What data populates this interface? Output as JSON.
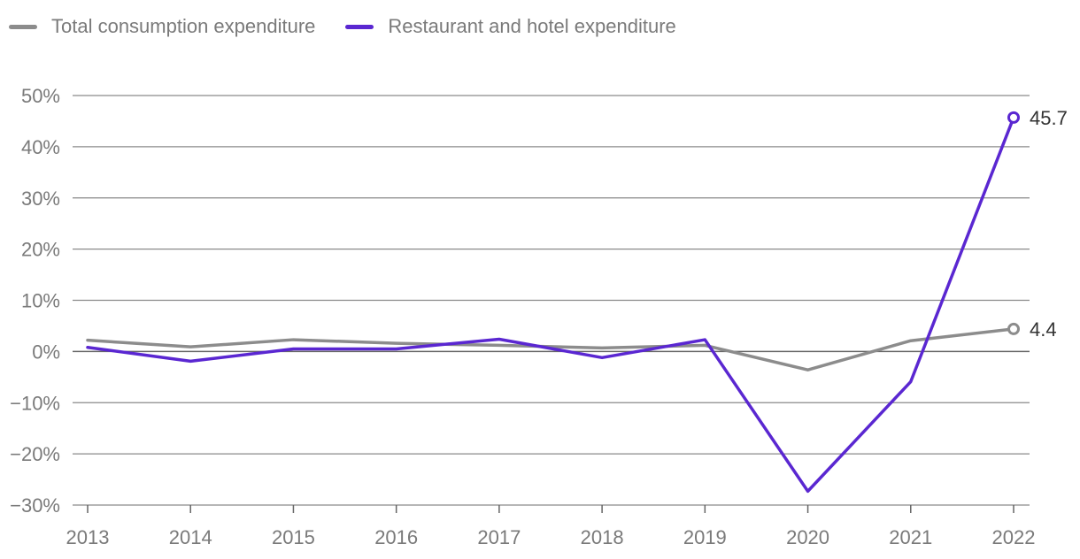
{
  "chart_data": {
    "type": "line",
    "categories": [
      "2013",
      "2014",
      "2015",
      "2016",
      "2017",
      "2018",
      "2019",
      "2020",
      "2021",
      "2022"
    ],
    "series": [
      {
        "name": "Total consumption expenditure",
        "color": "#8c8c8c",
        "values": [
          2.2,
          0.9,
          2.3,
          1.6,
          1.2,
          0.7,
          1.2,
          -3.6,
          2.1,
          4.4
        ],
        "end_label": "4.4"
      },
      {
        "name": "Restaurant and hotel expenditure",
        "color": "#5a27d1",
        "values": [
          0.8,
          -1.9,
          0.5,
          0.5,
          2.4,
          -1.2,
          2.3,
          -27.3,
          -5.9,
          45.7
        ],
        "end_label": "45.7"
      }
    ],
    "y_ticks": [
      {
        "value": 50,
        "label": "50%"
      },
      {
        "value": 40,
        "label": "40%"
      },
      {
        "value": 30,
        "label": "30%"
      },
      {
        "value": 20,
        "label": "20%"
      },
      {
        "value": 10,
        "label": "10%"
      },
      {
        "value": 0,
        "label": "0%"
      },
      {
        "value": -10,
        "label": "−10%"
      },
      {
        "value": -20,
        "label": "−20%"
      },
      {
        "value": -30,
        "label": "−30%"
      }
    ],
    "ylim": [
      -30,
      50
    ],
    "title": "",
    "xlabel": "",
    "ylabel": "",
    "grid": true,
    "legend_position": "top-left"
  }
}
